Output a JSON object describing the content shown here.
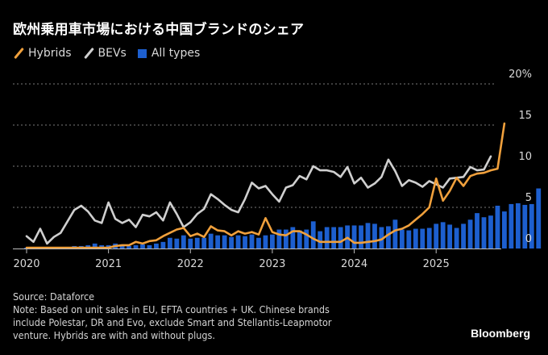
{
  "title": "欧州乗用車市場における中国ブランドのシェア",
  "legend": [
    {
      "label": "Hybrids",
      "color": "#f0a03c",
      "shape": "line"
    },
    {
      "label": "BEVs",
      "color": "#cfcfcf",
      "shape": "line"
    },
    {
      "label": "All types",
      "color": "#1d5fcf",
      "shape": "square"
    }
  ],
  "footer": {
    "source": "Source: Dataforce",
    "note_lines": [
      "Note: Based on unit sales in EU, EFTA countries + UK. Chinese brands",
      "include Polestar, DR and Evo, exclude Smart and Stellantis-Leapmotor",
      "venture. Hybrids are with and without plugs."
    ],
    "brand": "Bloomberg"
  },
  "chart_data": {
    "type": "bar+line",
    "title": "欧州乗用車市場における中国ブランドのシェア",
    "xlabel": "",
    "ylabel": "",
    "ylim": [
      0,
      20
    ],
    "yticks": [
      0,
      5,
      10,
      15,
      20
    ],
    "ytick_labels": [
      "0",
      "5",
      "10",
      "15",
      "20%"
    ],
    "grid": true,
    "y_axis_side": "right",
    "legend_position": "top-left",
    "x_start": "2020-01",
    "x_frequency": "monthly",
    "xticks": [
      "2020",
      "2021",
      "2022",
      "2023",
      "2024",
      "2025"
    ],
    "series": [
      {
        "name": "All types",
        "type": "bar",
        "color": "#1d5fcf",
        "values": [
          0.1,
          0.1,
          0.1,
          0.1,
          0.1,
          0.1,
          0.2,
          0.3,
          0.3,
          0.4,
          0.6,
          0.4,
          0.4,
          0.6,
          0.5,
          0.3,
          0.4,
          0.5,
          0.4,
          0.6,
          0.8,
          1.3,
          1.2,
          1.6,
          1.2,
          1.3,
          1.3,
          1.8,
          1.6,
          1.6,
          1.4,
          1.6,
          1.5,
          1.7,
          1.3,
          1.6,
          1.7,
          2.3,
          2.3,
          2.6,
          2.2,
          2.3,
          3.3,
          2.1,
          2.6,
          2.6,
          2.6,
          2.8,
          2.8,
          2.8,
          3.1,
          3.0,
          2.6,
          2.7,
          3.5,
          2.3,
          2.2,
          2.4,
          2.4,
          2.5,
          3.0,
          3.2,
          2.9,
          2.5,
          3.0,
          3.5,
          4.3,
          3.8,
          4.0,
          5.2,
          4.5,
          5.4,
          5.5,
          5.3,
          5.4,
          7.3
        ]
      },
      {
        "name": "BEVs",
        "type": "line",
        "color": "#cfcfcf",
        "values": [
          1.5,
          0.8,
          2.4,
          0.6,
          1.4,
          1.9,
          3.3,
          4.7,
          5.2,
          4.5,
          3.4,
          3.1,
          5.6,
          3.6,
          3.1,
          3.5,
          2.6,
          4.1,
          3.9,
          4.4,
          3.4,
          5.6,
          4.2,
          2.6,
          3.2,
          4.2,
          4.8,
          6.6,
          6.0,
          5.3,
          4.7,
          4.4,
          6.0,
          8.0,
          7.3,
          7.6,
          6.6,
          5.7,
          7.4,
          7.7,
          8.8,
          8.4,
          10.0,
          9.5,
          9.5,
          9.3,
          8.7,
          9.9,
          7.9,
          8.6,
          7.4,
          7.9,
          8.7,
          10.8,
          9.4,
          7.6,
          8.3,
          8.0,
          7.5,
          8.2,
          7.8,
          7.4,
          8.5,
          8.6,
          8.7,
          9.9,
          9.5,
          9.6,
          11.2
        ]
      },
      {
        "name": "Hybrids",
        "type": "line",
        "color": "#f0a03c",
        "values": [
          0.1,
          0.1,
          0.1,
          0.1,
          0.1,
          0.1,
          0.1,
          0.1,
          0.1,
          0.1,
          0.1,
          0.1,
          0.1,
          0.3,
          0.4,
          0.4,
          0.8,
          0.6,
          0.9,
          1.0,
          1.5,
          1.9,
          2.3,
          2.5,
          1.5,
          1.8,
          1.4,
          2.7,
          2.2,
          2.1,
          1.6,
          2.1,
          1.8,
          2.0,
          1.7,
          3.7,
          2.0,
          1.7,
          1.6,
          2.1,
          2.1,
          1.7,
          1.2,
          0.8,
          0.8,
          0.8,
          0.8,
          1.3,
          0.7,
          0.7,
          0.8,
          0.9,
          1.1,
          1.7,
          2.2,
          2.4,
          2.8,
          3.5,
          4.2,
          5.0,
          8.5,
          5.8,
          7.0,
          8.6,
          7.6,
          8.8,
          9.1,
          9.2,
          9.5,
          9.7,
          15.2
        ]
      }
    ]
  }
}
